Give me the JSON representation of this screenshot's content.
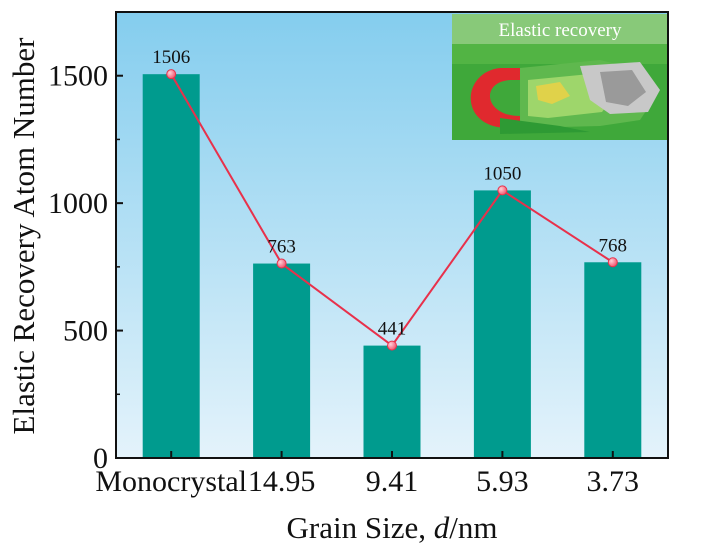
{
  "chart_data": {
    "type": "bar",
    "categories": [
      "Monocrystal",
      "14.95",
      "9.41",
      "5.93",
      "3.73"
    ],
    "values": [
      1506,
      763,
      441,
      1050,
      768
    ],
    "data_labels": [
      "1506",
      "763",
      "441",
      "1050",
      "768"
    ],
    "ylabel": "Elastic Recovery Atom Number",
    "xlabel_main": "Grain Size, ",
    "xlabel_italic": "d",
    "xlabel_unit": "/nm",
    "ylim": [
      0,
      1750
    ],
    "yticks": [
      0,
      500,
      1000,
      1500
    ],
    "overlay_line": true,
    "grid": false,
    "inset": {
      "label": "Elastic recovery"
    },
    "colors": {
      "bar": "#009B8E",
      "line": "#E8314B",
      "marker": "#F0506A",
      "background_top": "#84CDEE",
      "background_bottom": "#E4F3FB"
    }
  }
}
